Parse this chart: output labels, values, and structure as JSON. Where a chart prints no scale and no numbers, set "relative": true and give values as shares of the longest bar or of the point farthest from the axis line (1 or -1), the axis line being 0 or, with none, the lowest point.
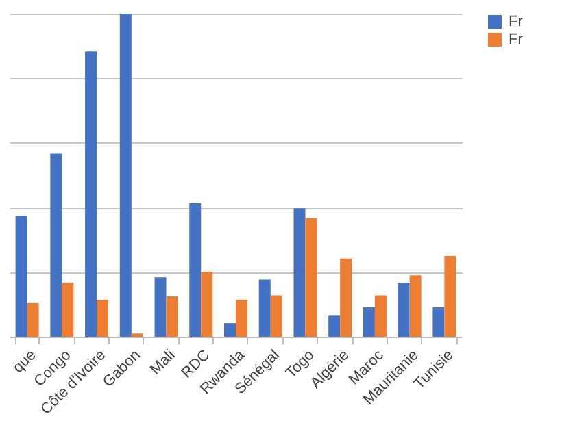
{
  "chart_data": {
    "type": "bar",
    "relative": true,
    "grid": "y",
    "legend": "right",
    "categories": [
      "que",
      "Congo",
      "Côte d'Ivoire",
      "Gabon",
      "Mali",
      "RDC",
      "Rwanda",
      "Sénégal",
      "Togo",
      "Algérie",
      "Maroc",
      "Mauritanie",
      "Tunisie"
    ],
    "series": [
      {
        "name": "Fr",
        "color": "#4472c4",
        "values": [
          0.374,
          0.567,
          0.883,
          1,
          0.184,
          0.413,
          0.042,
          0.177,
          0.398,
          0.065,
          0.091,
          0.167,
          0.091
        ]
      },
      {
        "name": "Fr",
        "color": "#ed7d31",
        "values": [
          0.104,
          0.167,
          0.114,
          0.01,
          0.125,
          0.2,
          0.114,
          0.128,
          0.367,
          0.242,
          0.128,
          0.19,
          0.25
        ]
      }
    ]
  }
}
